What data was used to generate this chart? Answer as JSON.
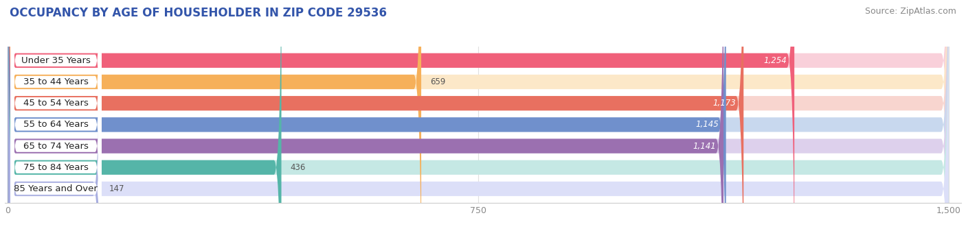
{
  "title": "OCCUPANCY BY AGE OF HOUSEHOLDER IN ZIP CODE 29536",
  "source": "Source: ZipAtlas.com",
  "categories": [
    "Under 35 Years",
    "35 to 44 Years",
    "45 to 54 Years",
    "55 to 64 Years",
    "65 to 74 Years",
    "75 to 84 Years",
    "85 Years and Over"
  ],
  "values": [
    1254,
    659,
    1173,
    1145,
    1141,
    436,
    147
  ],
  "bar_colors": [
    "#F0607A",
    "#F6B05A",
    "#E87060",
    "#7090CC",
    "#9B70B0",
    "#55B5A8",
    "#A8AEE0"
  ],
  "bar_bg_colors": [
    "#F9D0DA",
    "#FCE8C8",
    "#F8D5CF",
    "#C8D8EE",
    "#DDD0EC",
    "#C5E8E4",
    "#DCDFF8"
  ],
  "xlim": [
    0,
    1500
  ],
  "xticks": [
    0,
    750,
    1500
  ],
  "title_fontsize": 12,
  "source_fontsize": 9,
  "label_fontsize": 9.5,
  "value_fontsize": 8.5,
  "background_color": "#ffffff"
}
